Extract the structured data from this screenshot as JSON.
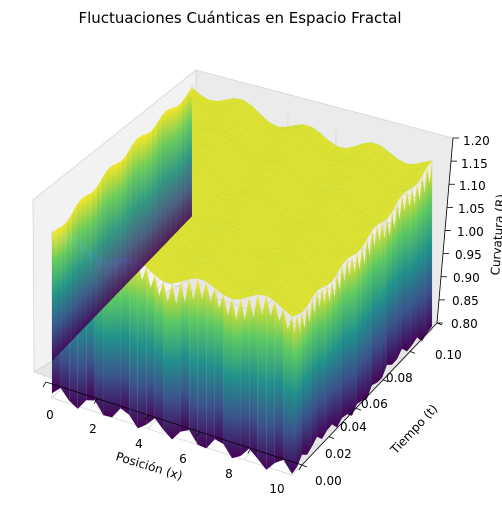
{
  "chart_data": {
    "type": "surface3d",
    "title": "Fluctuaciones Cuánticas en Espacio Fractal",
    "xlabel": "Posición (x)",
    "ylabel": "Tiempo (t)",
    "zlabel": "Curvatura (R)",
    "x_ticks": [
      "0",
      "2",
      "4",
      "6",
      "8",
      "10"
    ],
    "y_ticks": [
      "0.00",
      "0.02",
      "0.04",
      "0.06",
      "0.08",
      "0.10"
    ],
    "z_ticks": [
      "0.80",
      "0.85",
      "0.90",
      "0.95",
      "1.00",
      "1.05",
      "1.10",
      "1.15",
      "1.20"
    ],
    "xlim": [
      0,
      10
    ],
    "ylim": [
      0,
      0.1
    ],
    "zlim": [
      0.8,
      1.2
    ],
    "colormap": "viridis",
    "colormap_stops": [
      "#440154",
      "#3b528b",
      "#21918c",
      "#5ec962",
      "#fde725"
    ],
    "grid": true,
    "pane_color": "#f2f2f2"
  }
}
